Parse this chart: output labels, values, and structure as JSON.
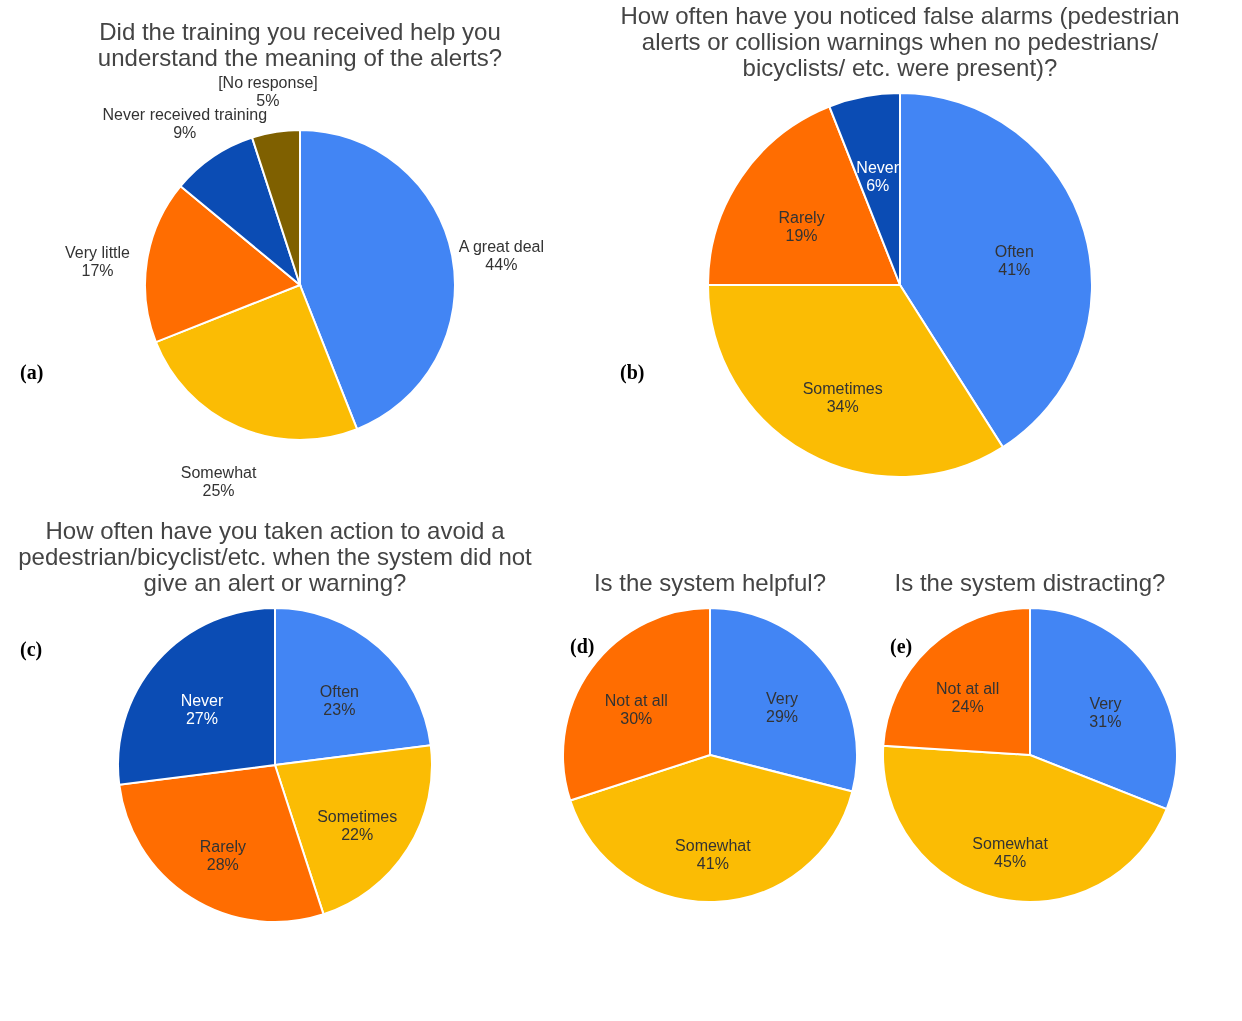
{
  "chart_data": [
    {
      "type": "pie",
      "title": "Did the training you received help you understand the meaning of the alerts?",
      "categories": [
        "A great deal",
        "Somewhat",
        "Very little",
        "Never received training",
        "[No response]"
      ],
      "values": [
        44,
        25,
        17,
        9,
        5
      ],
      "value_labels": [
        "44%",
        "25%",
        "17%",
        "9%",
        "5%"
      ],
      "colors": [
        "#4285f4",
        "#fbbc04",
        "#ff6d01",
        "#0b4cb4",
        "#7f6000"
      ],
      "annotations": [
        "(a)"
      ]
    },
    {
      "type": "pie",
      "title": "How often have you noticed false alarms (pedestrian alerts or collision warnings when no pedestrians/ bicyclists/ etc. were present)?",
      "categories": [
        "Often",
        "Sometimes",
        "Rarely",
        "Never"
      ],
      "values": [
        41,
        34,
        19,
        6
      ],
      "value_labels": [
        "41%",
        "34%",
        "19%",
        "6%"
      ],
      "colors": [
        "#4285f4",
        "#fbbc04",
        "#ff6d01",
        "#0b4cb4"
      ],
      "annotations": [
        "(b)"
      ]
    },
    {
      "type": "pie",
      "title": "How often have you taken action to avoid a pedestrian/bicyclist/etc. when the system did not give an alert or warning?",
      "categories": [
        "Often",
        "Sometimes",
        "Rarely",
        "Never"
      ],
      "values": [
        23,
        22,
        28,
        27
      ],
      "value_labels": [
        "23%",
        "22%",
        "28%",
        "27%"
      ],
      "colors": [
        "#4285f4",
        "#fbbc04",
        "#ff6d01",
        "#0b4cb4"
      ],
      "annotations": [
        "(c)"
      ]
    },
    {
      "type": "pie",
      "title": "Is the system helpful?",
      "categories": [
        "Very",
        "Somewhat",
        "Not at all"
      ],
      "values": [
        29,
        41,
        30
      ],
      "value_labels": [
        "29%",
        "41%",
        "30%"
      ],
      "colors": [
        "#4285f4",
        "#fbbc04",
        "#ff6d01"
      ],
      "annotations": [
        "(d)"
      ]
    },
    {
      "type": "pie",
      "title": "Is the system distracting?",
      "categories": [
        "Very",
        "Somewhat",
        "Not at all"
      ],
      "values": [
        31,
        45,
        24
      ],
      "value_labels": [
        "31%",
        "45%",
        "24%"
      ],
      "colors": [
        "#4285f4",
        "#fbbc04",
        "#ff6d01"
      ],
      "annotations": [
        "(e)"
      ]
    }
  ]
}
